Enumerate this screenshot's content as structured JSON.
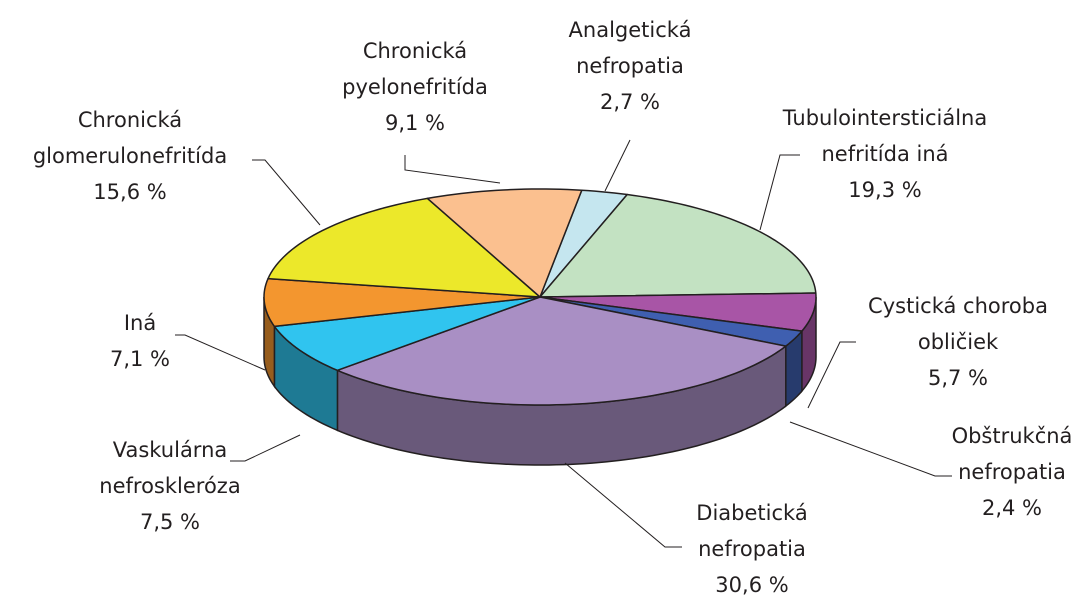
{
  "chart_data": {
    "type": "pie",
    "categories": [
      "Analgetická nefropatia",
      "Tubulointersticiálna nefritída iná",
      "Cystická choroba obličiek",
      "Obštrukčná nefropatia",
      "Diabetická nefropatia",
      "Vaskulárna nefroskleróza",
      "Iná",
      "Chronická glomerulonefritída",
      "Chronická pyelonefritída"
    ],
    "values": [
      2.7,
      19.3,
      5.7,
      2.4,
      30.6,
      7.5,
      7.1,
      15.6,
      9.1
    ],
    "value_labels": [
      "2,7 %",
      "19,3 %",
      "5,7 %",
      "2,4 %",
      "30,6 %",
      "7,5 %",
      "7,1 %",
      "15,6 %",
      "9,1 %"
    ],
    "colors": [
      "#c5e6ef",
      "#c3e2c2",
      "#a855a6",
      "#3f5fb0",
      "#a98fc4",
      "#30c4ef",
      "#f3962f",
      "#ece82a",
      "#fbc08f"
    ]
  }
}
